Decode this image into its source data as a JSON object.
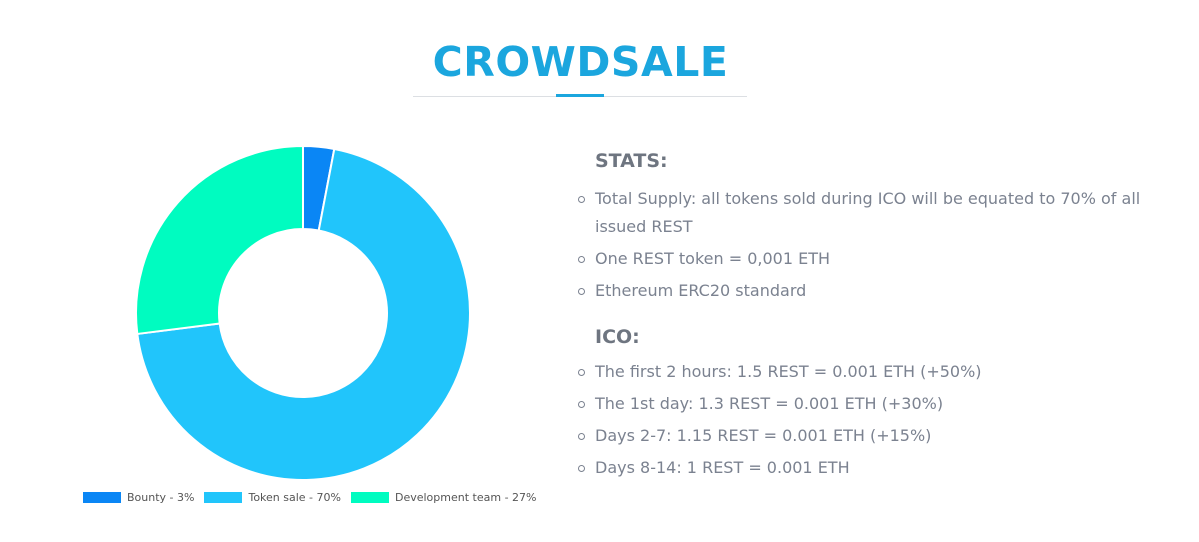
{
  "page": {
    "title": "CROWDSALE"
  },
  "stats": {
    "heading": "STATS:",
    "items": [
      "Total Supply: all tokens sold during ICO will be equated to 70% of all issued REST",
      "One REST token = 0,001 ETH",
      "Ethereum ERC20 standard"
    ]
  },
  "ico": {
    "heading": "ICO:",
    "items": [
      "The first 2 hours: 1.5 REST = 0.001 ETH (+50%)",
      "The 1st day: 1.3 REST = 0.001 ETH (+30%)",
      "Days 2-7: 1.15 REST = 0.001 ETH (+15%)",
      "Days 8-14: 1 REST = 0.001 ETH"
    ]
  },
  "chart_data": {
    "type": "pie",
    "title": "",
    "categories": [
      "Bounty",
      "Token sale",
      "Development team"
    ],
    "values": [
      3,
      70,
      27
    ],
    "legend_labels": [
      "Bounty - 3%",
      "Token sale - 70%",
      "Development team - 27%"
    ],
    "colors": [
      "#0a86f5",
      "#21c5fb",
      "#00fcc0"
    ],
    "donut": true,
    "legend_position": "bottom"
  }
}
